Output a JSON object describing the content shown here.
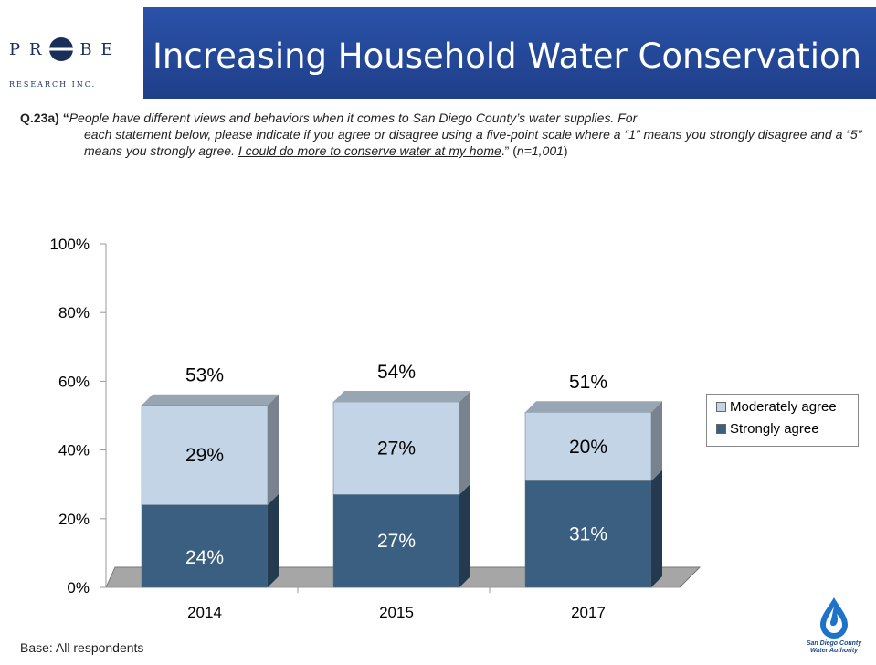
{
  "header": {
    "title": "Increasing Household Water Conservation",
    "logo_left": "P R",
    "logo_right": "B E",
    "logo_sub": "RESEARCH INC."
  },
  "question": {
    "id": "Q.23a) “",
    "text_a": "People have different views and behaviors when it comes to San Diego County’s water supplies.  For",
    "text_b": "each statement below, please indicate if you agree or disagree using a five-point scale where a “1” means you strongly disagree and a “5” means you strongly agree. ",
    "statement": "I could do more to conserve water at my home",
    "tail_a": ".” (",
    "sample": "n=1,001",
    "tail_b": ")"
  },
  "base_note": "Base:  All respondents",
  "legend": {
    "moderately": "Moderately agree",
    "strongly": "Strongly agree"
  },
  "water_logo": {
    "line1": "San Diego County",
    "line2": "Water Authority"
  },
  "colors": {
    "moderately": "#c3d4e6",
    "strongly": "#3a5f80",
    "title_bar": "#2449a0"
  },
  "chart_data": {
    "type": "bar",
    "stacked": true,
    "three_d": true,
    "categories": [
      "2014",
      "2015",
      "2017"
    ],
    "series": [
      {
        "name": "Strongly agree",
        "values": [
          24,
          27,
          31
        ],
        "labels": [
          "24%",
          "27%",
          "31%"
        ]
      },
      {
        "name": "Moderately agree",
        "values": [
          29,
          27,
          20
        ],
        "labels": [
          "29%",
          "27%",
          "20%"
        ]
      }
    ],
    "totals": [
      53,
      54,
      51
    ],
    "total_labels": [
      "53%",
      "54%",
      "51%"
    ],
    "ylim": [
      0,
      100
    ],
    "yticks": [
      0,
      20,
      40,
      60,
      80,
      100
    ],
    "ytick_labels": [
      "0%",
      "20%",
      "40%",
      "60%",
      "80%",
      "100%"
    ],
    "legend_position": "right",
    "grid": false
  }
}
